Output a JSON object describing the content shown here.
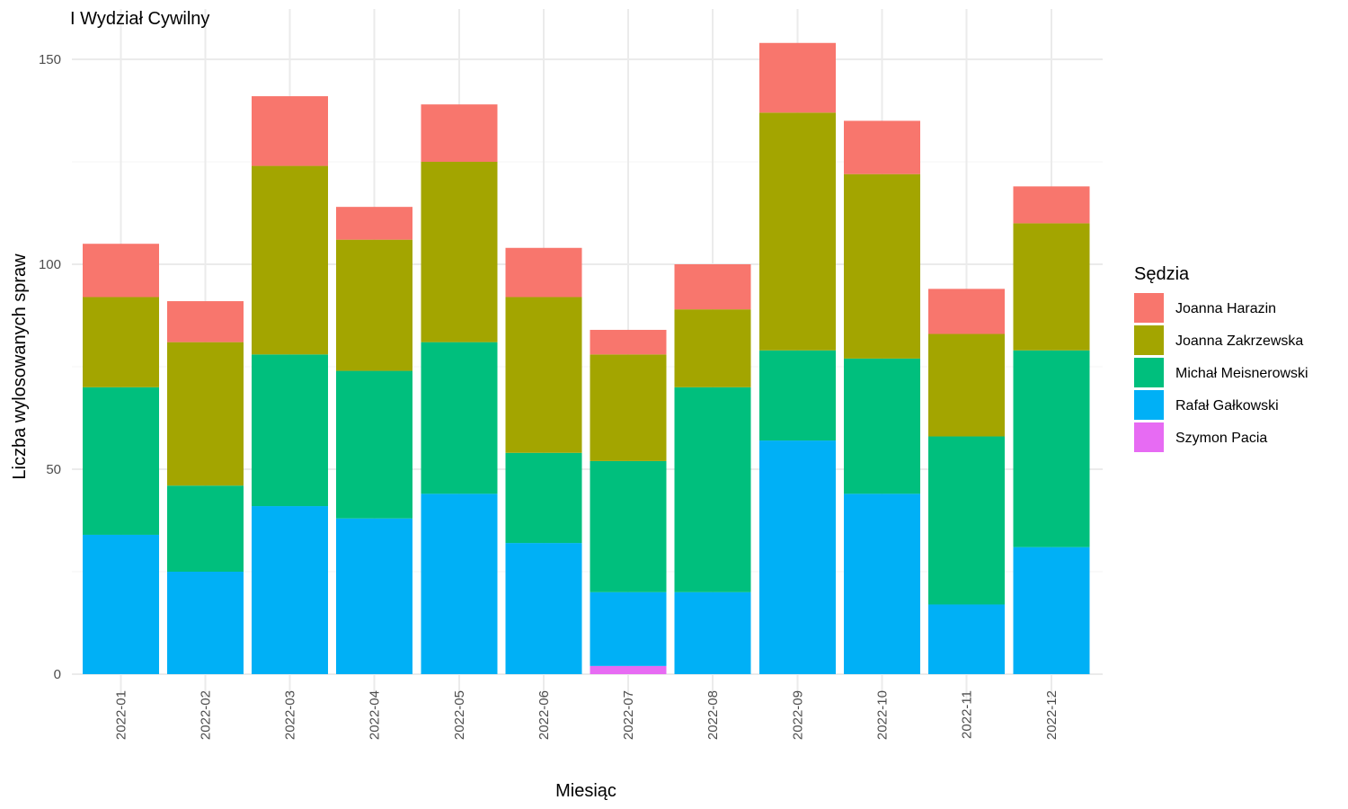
{
  "chart_data": {
    "type": "bar",
    "stacked": true,
    "title": "I Wydział Cywilny",
    "xlabel": "Miesiąc",
    "ylabel": "Liczba wylosowanych spraw",
    "ylim": [
      0,
      160
    ],
    "yticks": [
      0,
      50,
      100,
      150
    ],
    "grid": true,
    "legend_title": "Sędzia",
    "legend_position": "right",
    "categories": [
      "2022-01",
      "2022-02",
      "2022-03",
      "2022-04",
      "2022-05",
      "2022-06",
      "2022-07",
      "2022-08",
      "2022-09",
      "2022-10",
      "2022-11",
      "2022-12"
    ],
    "series": [
      {
        "name": "Joanna Harazin",
        "color": "#F8766D",
        "values": [
          13,
          10,
          17,
          8,
          14,
          12,
          6,
          11,
          17,
          13,
          11,
          9
        ]
      },
      {
        "name": "Joanna Zakrzewska",
        "color": "#A3A500",
        "values": [
          22,
          35,
          46,
          32,
          44,
          38,
          26,
          19,
          58,
          45,
          25,
          31
        ]
      },
      {
        "name": "Michał Meisnerowski",
        "color": "#00BF7D",
        "values": [
          36,
          21,
          37,
          36,
          37,
          22,
          32,
          50,
          22,
          33,
          41,
          48
        ]
      },
      {
        "name": "Rafał Gałkowski",
        "color": "#00B0F6",
        "values": [
          34,
          25,
          41,
          38,
          44,
          32,
          18,
          20,
          57,
          44,
          17,
          31
        ]
      },
      {
        "name": "Szymon Pacia",
        "color": "#E76BF3",
        "values": [
          0,
          0,
          0,
          0,
          0,
          0,
          2,
          0,
          0,
          0,
          0,
          0
        ]
      }
    ]
  }
}
